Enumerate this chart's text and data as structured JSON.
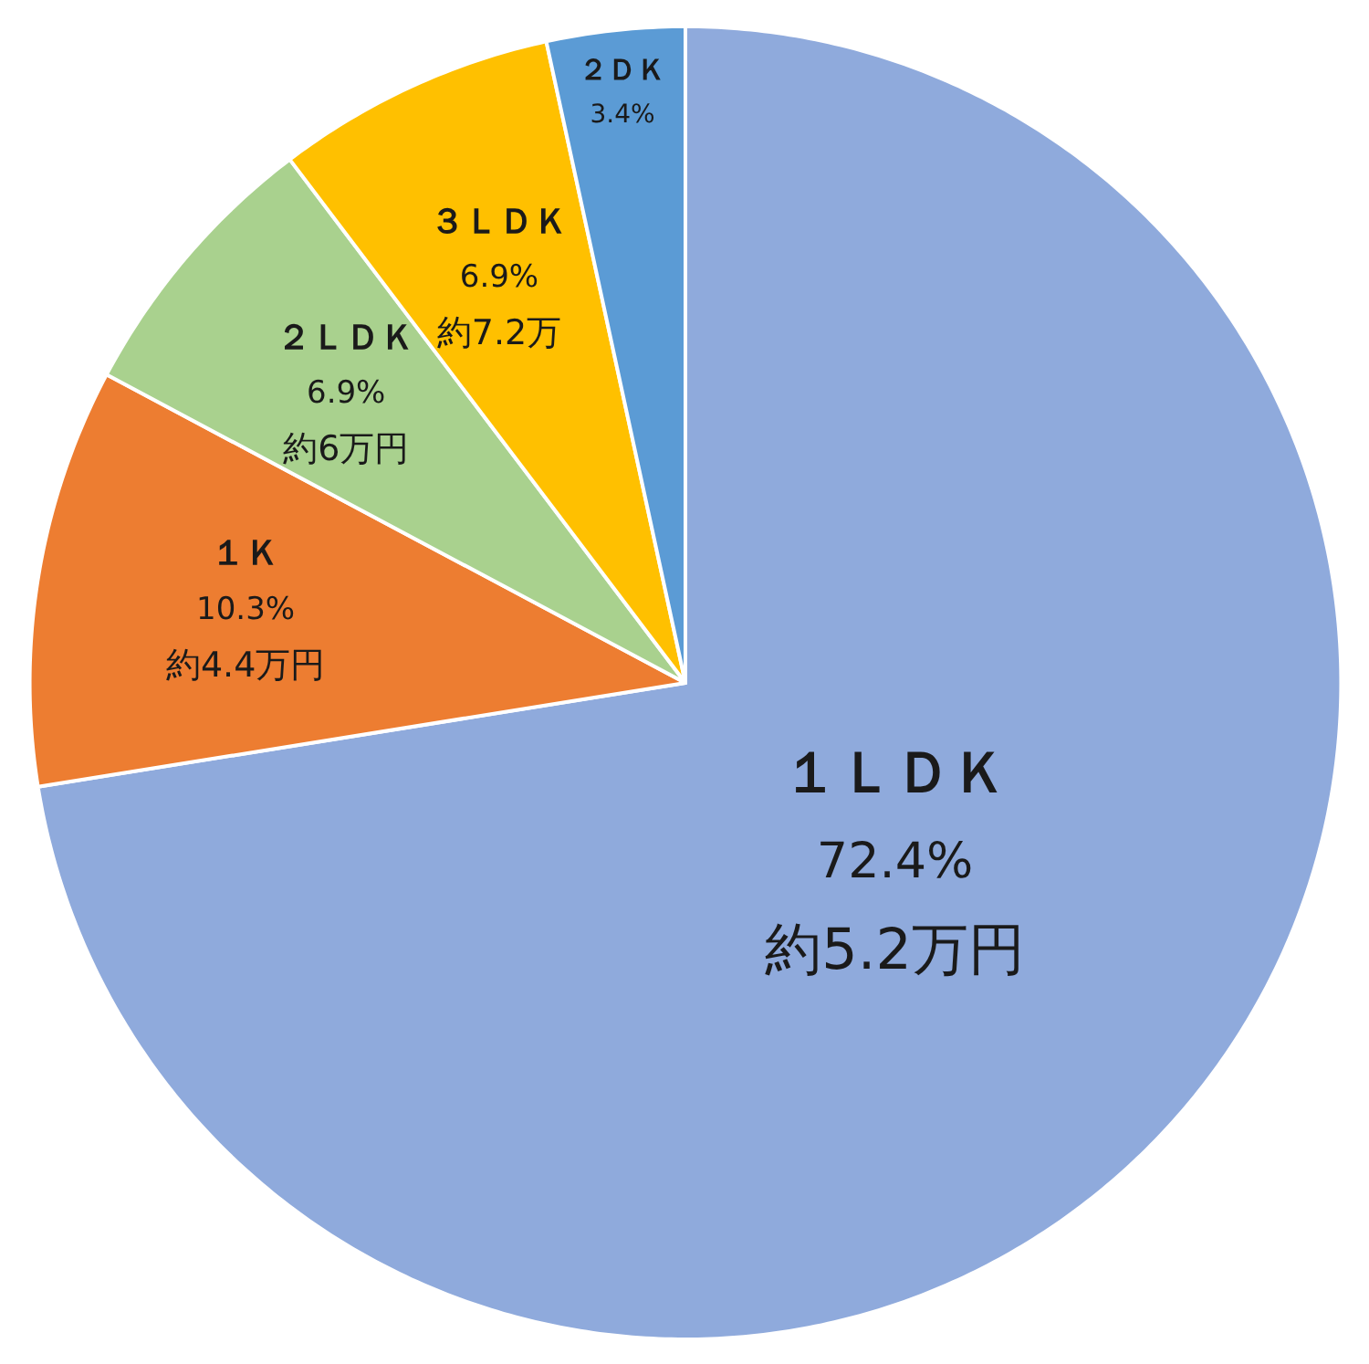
{
  "chart_data": {
    "type": "pie",
    "categories": [
      "１ＬＤＫ",
      "１Ｋ",
      "２ＬＤＫ",
      "３ＬＤＫ",
      "２ＤＫ"
    ],
    "values": [
      72.4,
      10.3,
      6.9,
      6.9,
      3.4
    ],
    "value_labels": [
      "72.4%",
      "10.3%",
      "6.9%",
      "6.9%",
      "3.4%"
    ],
    "colors": [
      "#8faadc",
      "#ed7d31",
      "#a9d18e",
      "#ffc000",
      "#5b9bd5"
    ],
    "annotations": [
      {
        "text": "約5.2万円",
        "x": "１ＬＤＫ"
      },
      {
        "text": "約4.4万円",
        "x": "１Ｋ"
      },
      {
        "text": "約6万円",
        "x": "２ＬＤＫ"
      },
      {
        "text": "約7.2万",
        "x": "３ＬＤＫ"
      }
    ],
    "legend": false
  }
}
